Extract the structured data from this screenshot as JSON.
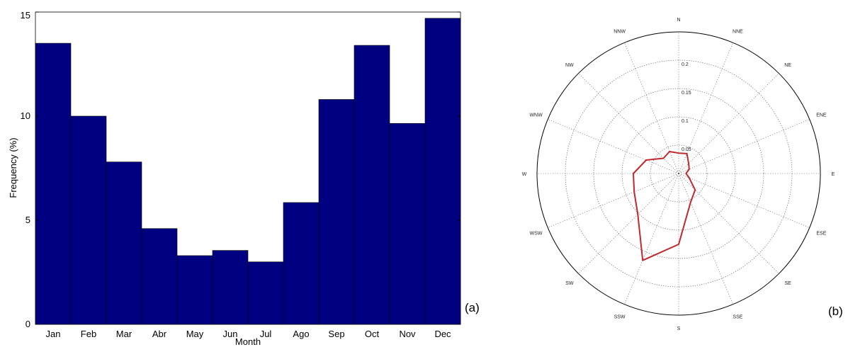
{
  "chart_data": [
    {
      "type": "bar",
      "panel_label": "(a)",
      "xlabel": "Month",
      "ylabel": "Frequency (%)",
      "ylim": [
        0,
        15
      ],
      "yticks": [
        "0",
        "5",
        "10",
        "15"
      ],
      "categories": [
        "Jan",
        "Feb",
        "Mar",
        "Abr",
        "May",
        "Jun",
        "Jul",
        "Ago",
        "Sep",
        "Oct",
        "Nov",
        "Dec"
      ],
      "values": [
        13.5,
        10.0,
        7.8,
        4.6,
        3.3,
        3.55,
        3.0,
        5.85,
        10.8,
        13.4,
        9.65,
        14.7
      ],
      "bar_color": "#000080"
    },
    {
      "type": "polar-line",
      "panel_label": "(b)",
      "directions": [
        "N",
        "NNE",
        "NE",
        "ENE",
        "E",
        "ESE",
        "SE",
        "SSE",
        "S",
        "SSW",
        "SW",
        "WSW",
        "W",
        "WNW",
        "NW",
        "NNW"
      ],
      "radial_ticks": [
        "0.05",
        "0.1",
        "0.15",
        "0.2"
      ],
      "rlim": [
        0,
        0.25
      ],
      "values": [
        0.036,
        0.038,
        0.025,
        0.02,
        0.013,
        0.02,
        0.041,
        0.055,
        0.125,
        0.166,
        0.102,
        0.085,
        0.08,
        0.062,
        0.038,
        0.042
      ],
      "line_color": "#c0282d"
    }
  ]
}
